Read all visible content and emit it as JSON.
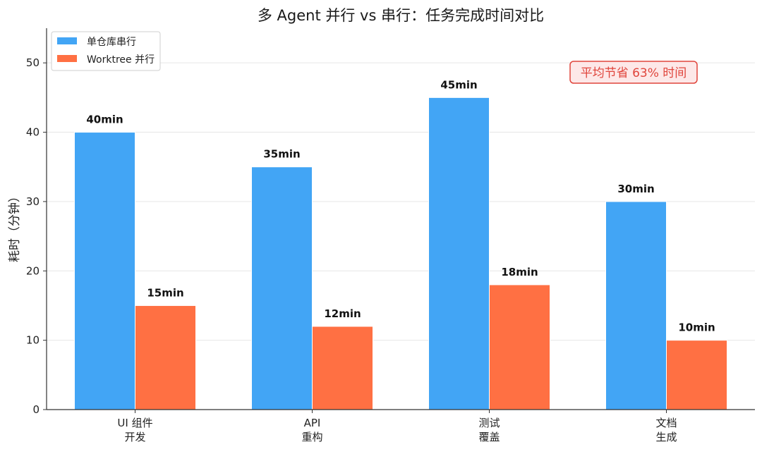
{
  "chart_data": {
    "type": "bar",
    "title": "多 Agent 并行 vs 串行：任务完成时间对比",
    "xlabel": "",
    "ylabel": "耗时（分钟）",
    "ylim": [
      0,
      55
    ],
    "yticks": [
      0,
      10,
      20,
      30,
      40,
      50
    ],
    "grid": "horizontal",
    "legend_position": "top-left",
    "categories": [
      [
        "UI 组件",
        "开发"
      ],
      [
        "API",
        "重构"
      ],
      [
        "测试",
        "覆盖"
      ],
      [
        "文档",
        "生成"
      ]
    ],
    "series": [
      {
        "name": "单仓库串行",
        "color": "#42a5f5",
        "values": [
          40,
          35,
          45,
          30
        ],
        "labels": [
          "40min",
          "35min",
          "45min",
          "30min"
        ]
      },
      {
        "name": "Worktree 并行",
        "color": "#ff7043",
        "values": [
          15,
          12,
          18,
          10
        ],
        "labels": [
          "15min",
          "12min",
          "18min",
          "10min"
        ]
      }
    ],
    "annotation": {
      "text": "平均节省 63% 时间",
      "color": "#e0453c",
      "background": "#fde8e8"
    }
  }
}
